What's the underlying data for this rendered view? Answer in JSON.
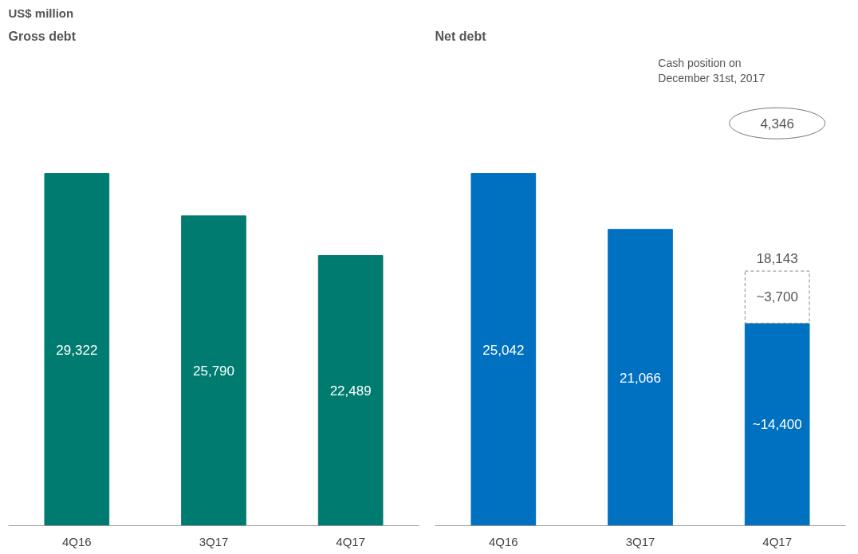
{
  "chart_data": [
    {
      "type": "bar",
      "title": "Gross debt",
      "subtitle": "US$ million",
      "categories": [
        "4Q16",
        "3Q17",
        "4Q17"
      ],
      "values": [
        29322,
        25790,
        22489
      ],
      "value_labels": [
        "29,322",
        "25,790",
        "22,489"
      ],
      "color": "#007b70"
    },
    {
      "type": "bar",
      "title": "Net debt",
      "categories": [
        "4Q16",
        "3Q17",
        "4Q17"
      ],
      "stacked": true,
      "series": [
        {
          "color": "#0070c0",
          "values": [
            25042,
            21066,
            14400
          ],
          "value_labels": [
            "25,042",
            "21,066",
            "~14,400"
          ]
        },
        {
          "color": "#ffffff",
          "values": [
            null,
            null,
            3700
          ],
          "value_labels": [
            null,
            null,
            "~3,700"
          ],
          "line_style": "dashed"
        }
      ],
      "annotations": [
        "Cash position on\nDecember 31st, 2017",
        "4,346",
        {
          "text": "18,143",
          "x": "4Q17",
          "y": 18143
        }
      ]
    }
  ]
}
